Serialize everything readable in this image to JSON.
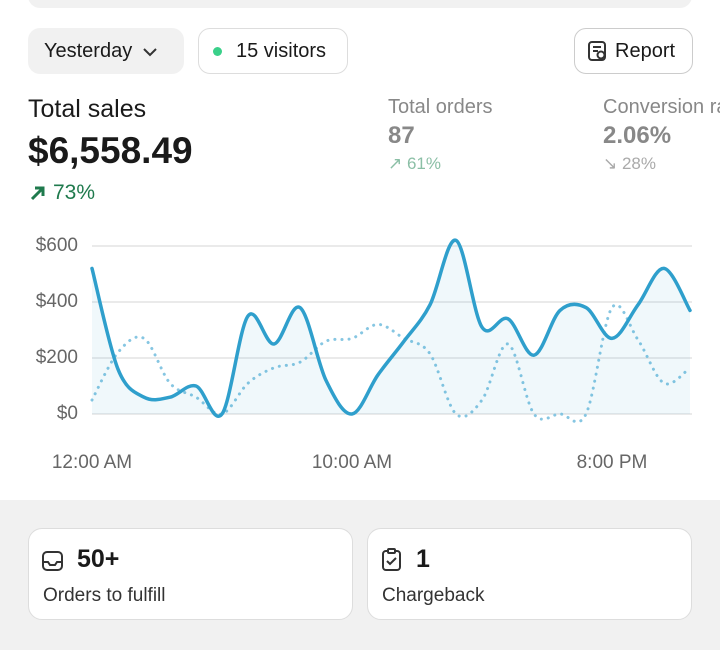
{
  "filter": {
    "period": "Yesterday",
    "visitors": "15 visitors",
    "report": "Report"
  },
  "metrics": {
    "total_sales": {
      "label": "Total sales",
      "value": "$6,558.49",
      "change": "73%"
    },
    "total_orders": {
      "label": "Total orders",
      "value": "87",
      "change": "61%"
    },
    "conversion": {
      "label": "Conversion rate",
      "value": "2.06%",
      "change": "28%"
    }
  },
  "chart_data": {
    "type": "line",
    "x": [
      0,
      1,
      2,
      3,
      4,
      5,
      6,
      7,
      8,
      9,
      10,
      11,
      12,
      13,
      14,
      15,
      16,
      17,
      18,
      19,
      20,
      21,
      22,
      23
    ],
    "xlim": [
      0,
      23
    ],
    "xticks": [
      {
        "value": 0,
        "label": "12:00 AM"
      },
      {
        "value": 10,
        "label": "10:00 AM"
      },
      {
        "value": 20,
        "label": "8:00 PM"
      }
    ],
    "ylim": [
      0,
      600
    ],
    "yticks": [
      {
        "value": 0,
        "label": "$0"
      },
      {
        "value": 200,
        "label": "$200"
      },
      {
        "value": 400,
        "label": "$400"
      },
      {
        "value": 600,
        "label": "$600"
      }
    ],
    "grid": true,
    "series": [
      {
        "color": "#2f9fcc",
        "style": "solid",
        "values": [
          520,
          160,
          60,
          60,
          100,
          0,
          350,
          250,
          380,
          120,
          0,
          140,
          260,
          390,
          620,
          310,
          340,
          210,
          370,
          380,
          270,
          390,
          520,
          370
        ]
      },
      {
        "color": "#86c6e2",
        "style": "dotted",
        "values": [
          50,
          220,
          270,
          110,
          60,
          0,
          110,
          165,
          185,
          260,
          270,
          320,
          270,
          215,
          0,
          50,
          250,
          0,
          0,
          0,
          380,
          265,
          110,
          165
        ]
      }
    ]
  },
  "cards": [
    {
      "value": "50+",
      "label": "Orders to fulfill"
    },
    {
      "value": "1",
      "label": "Chargeback"
    }
  ]
}
